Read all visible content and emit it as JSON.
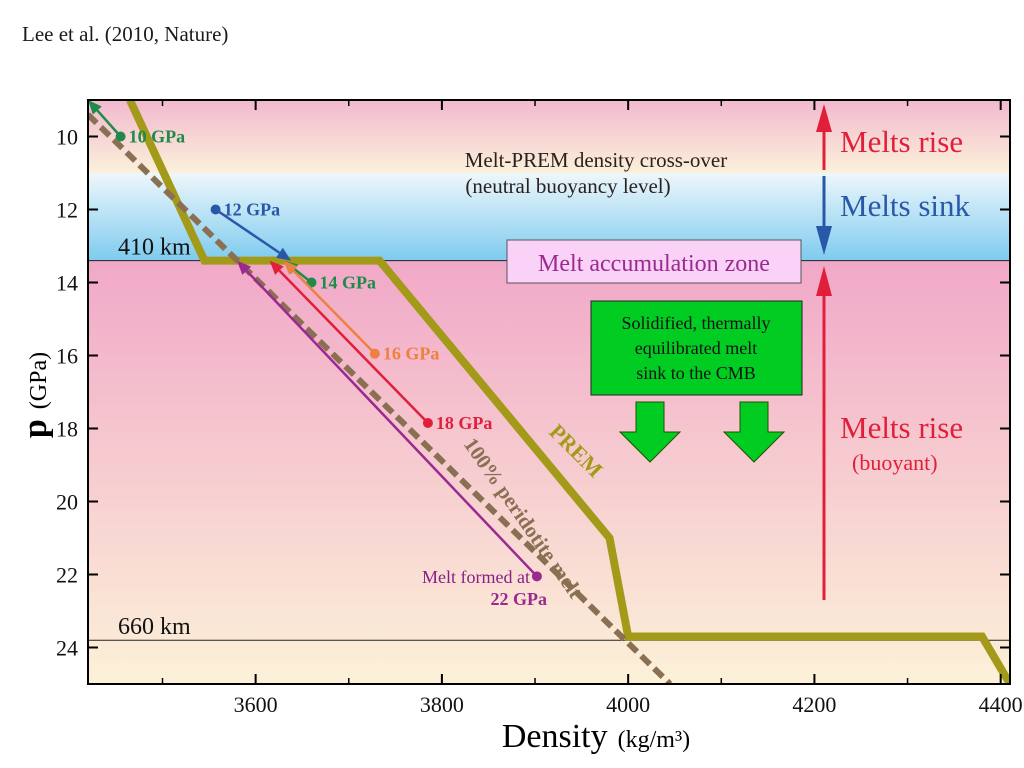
{
  "citation": "Lee et al. (2010, Nature)",
  "chart_data": {
    "type": "line",
    "xlabel": "Density",
    "xlabel_unit": "(kg/m³)",
    "ylabel": "p",
    "ylabel_unit": "(GPa)",
    "xlim": [
      3420,
      4410
    ],
    "ylim": [
      25,
      9
    ],
    "x_ticks": [
      3600,
      3800,
      4000,
      4200,
      4400
    ],
    "y_ticks": [
      10,
      12,
      14,
      16,
      18,
      20,
      22,
      24
    ],
    "zones": [
      {
        "name": "upper",
        "from": 9,
        "to": 11,
        "color_top": "#f2b8cf",
        "color_bottom": "#fbf1d9"
      },
      {
        "name": "sink",
        "from": 11,
        "to": 13.4,
        "color_top": "#eef7fb",
        "color_bottom": "#7ecbef"
      },
      {
        "name": "lower",
        "from": 13.4,
        "to": 25,
        "color_top": "#f1a8c8",
        "color_bottom": "#fcf1d8"
      }
    ],
    "depth_lines": [
      {
        "label": "410 km",
        "p": 13.4
      },
      {
        "label": "660 km",
        "p": 23.8
      }
    ],
    "series": [
      {
        "name": "PREM",
        "color": "#a39a1a",
        "points": [
          [
            3465,
            9
          ],
          [
            3545,
            13.4
          ],
          [
            3733,
            13.4
          ],
          [
            3980,
            21.0
          ],
          [
            4000,
            23.7
          ],
          [
            4380,
            23.7
          ],
          [
            4410,
            25
          ]
        ]
      },
      {
        "name": "100% peridotite melt",
        "color": "#8a7052",
        "points": [
          [
            3420,
            9.4
          ],
          [
            4045,
            25
          ]
        ]
      }
    ],
    "melt_paths": [
      {
        "label": "10 GPa",
        "color": "#1f8a4a",
        "from": [
          3455,
          10.0
        ],
        "to": [
          3420,
          9.0
        ]
      },
      {
        "label": "12 GPa",
        "color": "#2a58a8",
        "from": [
          3557,
          12.0
        ],
        "to": [
          3638,
          13.4
        ]
      },
      {
        "label": "14 GPa",
        "color": "#1f8a4a",
        "from": [
          3660,
          14.0
        ],
        "to": [
          3630,
          13.4
        ]
      },
      {
        "label": "16 GPa",
        "color": "#ee8040",
        "from": [
          3728,
          15.95
        ],
        "to": [
          3630,
          13.4
        ]
      },
      {
        "label": "18 GPa",
        "color": "#e0203a",
        "from": [
          3785,
          17.85
        ],
        "to": [
          3615,
          13.4
        ]
      },
      {
        "label": "22 GPa",
        "color": "#9a2a90",
        "from": [
          3902,
          22.05
        ],
        "to": [
          3580,
          13.4
        ]
      }
    ],
    "annotations": {
      "crossover_line1": "Melt-PREM density cross-over",
      "crossover_line2": "(neutral buoyancy level)",
      "accumulation": "Melt accumulation zone",
      "solidified_line1": "Solidified, thermally",
      "solidified_line2": "equilibrated melt",
      "solidified_line3": "sink to the CMB",
      "rise_top": "Melts rise",
      "sink": "Melts sink",
      "rise_bottom": "Melts rise",
      "buoyant": "(buoyant)",
      "melt_formed_at": "Melt formed at",
      "prem_label": "PREM",
      "peridotite_label": "100% peridotite melt"
    },
    "colors": {
      "rise": "#e0203a",
      "sink": "#2a58a8",
      "accumulation_fill": "#fbd2f7",
      "accumulation_text": "#9a2a90",
      "solidified_fill": "#00cc22",
      "arrow_green": "#00cc22"
    }
  }
}
